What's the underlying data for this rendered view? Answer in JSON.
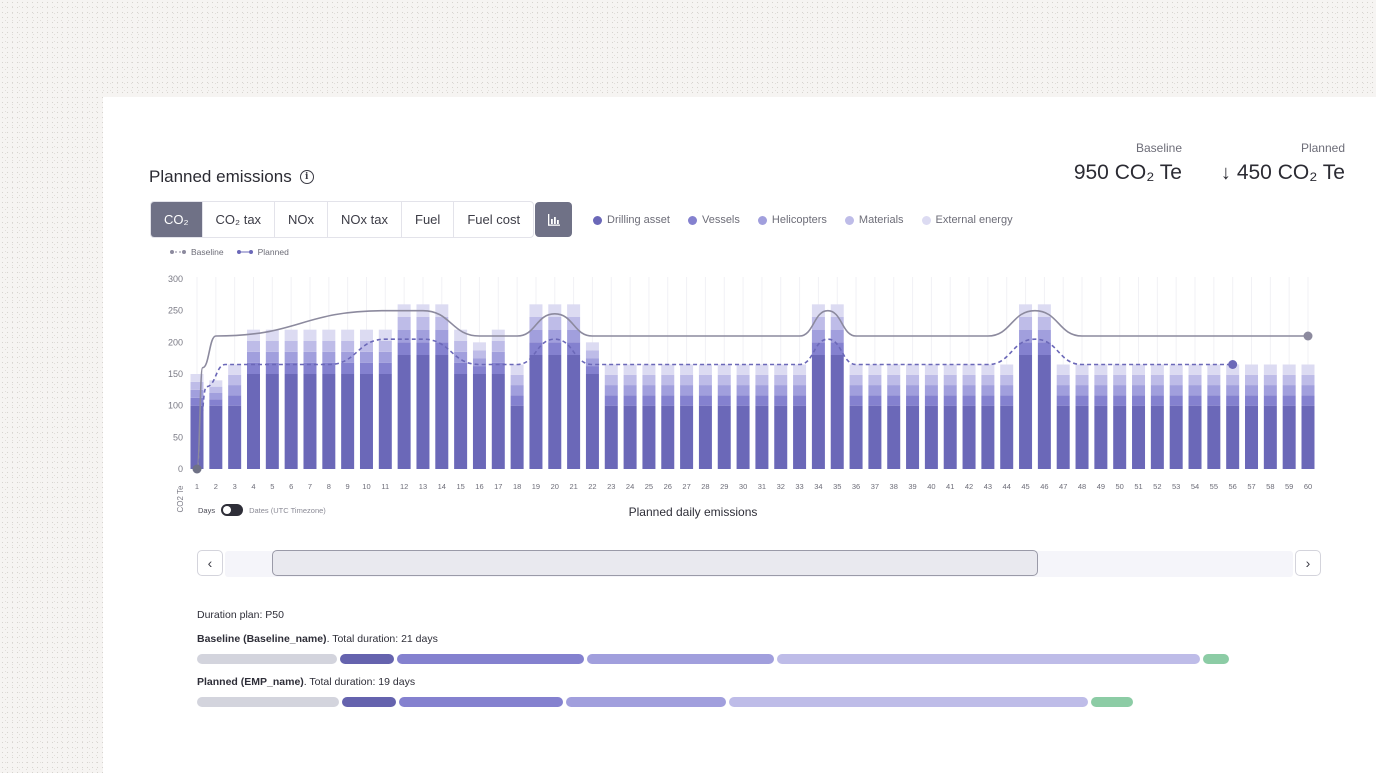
{
  "header": {
    "title": "Planned emissions",
    "baseline_label": "Baseline",
    "baseline_value": "950 CO₂ Te",
    "planned_label": "Planned",
    "planned_value": "450 CO₂ Te"
  },
  "tabs": [
    {
      "label": "CO₂",
      "active": true
    },
    {
      "label": "CO₂ tax",
      "active": false
    },
    {
      "label": "NOx",
      "active": false
    },
    {
      "label": "NOx tax",
      "active": false
    },
    {
      "label": "Fuel",
      "active": false
    },
    {
      "label": "Fuel cost",
      "active": false
    }
  ],
  "legend": [
    {
      "label": "Drilling asset",
      "color": "#6b68b8"
    },
    {
      "label": "Vessels",
      "color": "#8481cf"
    },
    {
      "label": "Helicopters",
      "color": "#a19fdd"
    },
    {
      "label": "Materials",
      "color": "#bebce8"
    },
    {
      "label": "External energy",
      "color": "#dcdbf2"
    }
  ],
  "line_legend": {
    "baseline": "Baseline",
    "planned": "Planned"
  },
  "toggle": {
    "days": "Days",
    "dates": "Dates (UTC Timezone)"
  },
  "chart_data": {
    "type": "bar",
    "stacked": true,
    "title": "",
    "xlabel": "Planned daily emissions",
    "ylabel": "CO2 Te",
    "ylim": [
      0,
      300
    ],
    "yticks": [
      0,
      50,
      100,
      150,
      200,
      250,
      300
    ],
    "categories": [
      "1",
      "2",
      "3",
      "4",
      "5",
      "6",
      "7",
      "8",
      "9",
      "10",
      "11",
      "12",
      "13",
      "14",
      "15",
      "16",
      "17",
      "18",
      "19",
      "20",
      "21",
      "22",
      "23",
      "24",
      "25",
      "26",
      "27",
      "28",
      "29",
      "30",
      "31",
      "32",
      "33",
      "34",
      "35",
      "36",
      "37",
      "38",
      "39",
      "40",
      "41",
      "42",
      "43",
      "44",
      "45",
      "46",
      "47",
      "48",
      "49",
      "50",
      "51",
      "52",
      "53",
      "54",
      "55",
      "56",
      "57",
      "58",
      "59",
      "60"
    ],
    "totals": [
      150,
      140,
      165,
      220,
      220,
      220,
      220,
      220,
      220,
      220,
      220,
      260,
      260,
      260,
      220,
      200,
      220,
      165,
      260,
      260,
      260,
      200,
      165,
      165,
      165,
      165,
      165,
      165,
      165,
      165,
      165,
      165,
      165,
      260,
      260,
      165,
      165,
      165,
      165,
      165,
      165,
      165,
      165,
      165,
      260,
      260,
      165,
      165,
      165,
      165,
      165,
      165,
      165,
      165,
      165,
      165,
      165,
      165,
      165,
      165
    ],
    "drilling_base": [
      100,
      100,
      100,
      150,
      150,
      150,
      150,
      150,
      150,
      150,
      150,
      180,
      180,
      180,
      150,
      150,
      150,
      100,
      180,
      180,
      180,
      150,
      100,
      100,
      100,
      100,
      100,
      100,
      100,
      100,
      100,
      100,
      100,
      180,
      180,
      100,
      100,
      100,
      100,
      100,
      100,
      100,
      100,
      100,
      180,
      180,
      100,
      100,
      100,
      100,
      100,
      100,
      100,
      100,
      100,
      100,
      100,
      100,
      100,
      100
    ],
    "lines": [
      {
        "name": "Baseline",
        "style": "solid",
        "color": "#8c8a9e",
        "points": [
          [
            1,
            0
          ],
          [
            1.3,
            160
          ],
          [
            2,
            210
          ],
          [
            11,
            250
          ],
          [
            13,
            250
          ],
          [
            16,
            210
          ],
          [
            18,
            210
          ],
          [
            20,
            245
          ],
          [
            22,
            210
          ],
          [
            33,
            210
          ],
          [
            34.5,
            250
          ],
          [
            36,
            210
          ],
          [
            43,
            210
          ],
          [
            45.5,
            250
          ],
          [
            48,
            210
          ],
          [
            60,
            210
          ]
        ]
      },
      {
        "name": "Planned",
        "style": "dashed",
        "color": "#6b68b8",
        "points": [
          [
            1,
            0
          ],
          [
            1.5,
            130
          ],
          [
            2.5,
            165
          ],
          [
            8,
            165
          ],
          [
            11,
            205
          ],
          [
            13,
            205
          ],
          [
            16,
            165
          ],
          [
            18,
            165
          ],
          [
            20,
            205
          ],
          [
            22,
            165
          ],
          [
            33,
            165
          ],
          [
            34.5,
            205
          ],
          [
            36,
            165
          ],
          [
            43,
            165
          ],
          [
            45.5,
            205
          ],
          [
            48,
            165
          ],
          [
            56,
            165
          ]
        ]
      }
    ]
  },
  "duration": {
    "plan_label": "Duration plan: P50",
    "baseline_name": "Baseline (Baseline_name)",
    "baseline_total": ". Total duration: 21 days",
    "planned_name": "Planned (EMP_name)",
    "planned_total": ". Total duration: 19 days"
  }
}
